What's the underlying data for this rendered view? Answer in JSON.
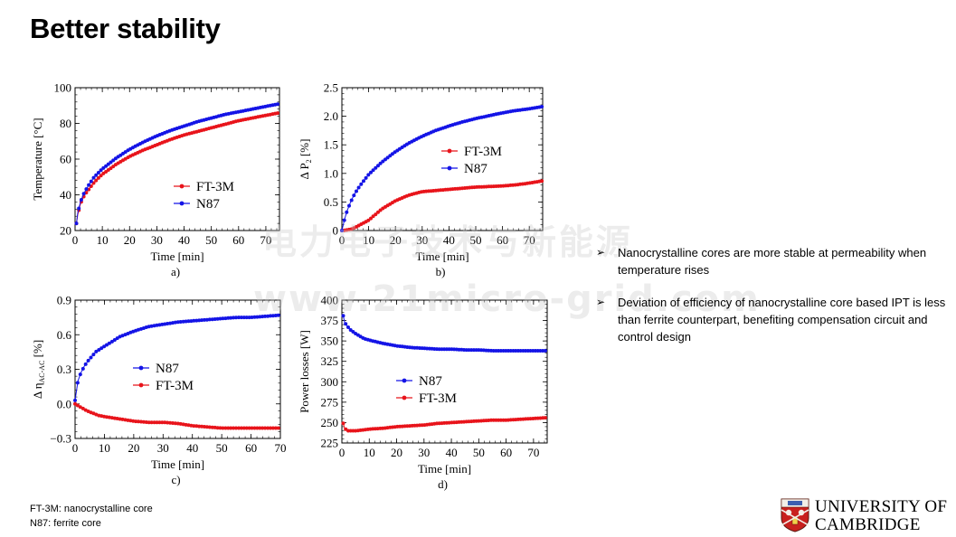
{
  "title": "Better stability",
  "chart_data": [
    {
      "id": "a",
      "type": "line",
      "caption": "a)",
      "xlabel": "Time [min]",
      "ylabel": "Temperature   [°C]",
      "xlim": [
        0,
        75
      ],
      "ylim": [
        20,
        100
      ],
      "xticks": [
        0,
        10,
        20,
        30,
        40,
        50,
        60,
        70
      ],
      "yticks": [
        20,
        40,
        60,
        80,
        100
      ],
      "legend_position": "lower-right",
      "series": [
        {
          "name": "FT-3M",
          "color": "#e8141b",
          "x": [
            0.5,
            1,
            2,
            3,
            4,
            5,
            7,
            10,
            15,
            20,
            25,
            30,
            35,
            40,
            45,
            50,
            55,
            60,
            65,
            70,
            75
          ],
          "y": [
            24,
            29,
            35,
            38.5,
            41,
            43,
            47,
            51.5,
            57,
            61.5,
            65,
            68,
            71,
            73.5,
            75.5,
            77.5,
            79.5,
            81.5,
            83,
            84.5,
            86
          ]
        },
        {
          "name": "N87",
          "color": "#1414e6",
          "x": [
            0.5,
            1,
            2,
            3,
            4,
            5,
            7,
            10,
            15,
            20,
            25,
            30,
            35,
            40,
            45,
            50,
            55,
            60,
            65,
            70,
            75
          ],
          "y": [
            24,
            30,
            36,
            40,
            43,
            45.5,
            50,
            54.5,
            60.5,
            65.5,
            69.5,
            73,
            76,
            78.5,
            81,
            83,
            85,
            86.5,
            88,
            89.5,
            91
          ]
        }
      ]
    },
    {
      "id": "b",
      "type": "line",
      "caption": "b)",
      "xlabel": "Time [min]",
      "ylabel": "Δ P",
      "ylabel_sub": "2",
      "ylabel_unit": " [%]",
      "xlim": [
        0,
        75
      ],
      "ylim": [
        0,
        2.5
      ],
      "xticks": [
        0,
        10,
        20,
        30,
        40,
        50,
        60,
        70
      ],
      "yticks": [
        0,
        0.5,
        1.0,
        1.5,
        2.0,
        2.5
      ],
      "ytick_labels": [
        "0",
        "0.5",
        "1.0",
        "1.5",
        "2.0",
        "2.5"
      ],
      "legend_position": "upper-center",
      "series": [
        {
          "name": "FT-3M",
          "color": "#e8141b",
          "x": [
            0,
            2,
            4,
            6,
            8,
            10,
            12,
            15,
            20,
            25,
            30,
            35,
            40,
            45,
            50,
            55,
            60,
            65,
            70,
            75
          ],
          "y": [
            0,
            0.01,
            0.03,
            0.08,
            0.13,
            0.18,
            0.26,
            0.38,
            0.52,
            0.62,
            0.68,
            0.7,
            0.72,
            0.74,
            0.76,
            0.77,
            0.78,
            0.8,
            0.83,
            0.87
          ]
        },
        {
          "name": "N87",
          "color": "#1414e6",
          "x": [
            0,
            1,
            2,
            3,
            4,
            5,
            7,
            10,
            15,
            20,
            25,
            30,
            35,
            40,
            45,
            50,
            55,
            60,
            65,
            70,
            75
          ],
          "y": [
            0,
            0.2,
            0.35,
            0.47,
            0.57,
            0.66,
            0.8,
            0.98,
            1.2,
            1.38,
            1.53,
            1.65,
            1.75,
            1.83,
            1.9,
            1.96,
            2.01,
            2.06,
            2.1,
            2.13,
            2.17
          ]
        }
      ]
    },
    {
      "id": "c",
      "type": "line",
      "caption": "c)",
      "xlabel": "Time [min]",
      "ylabel": "Δ η",
      "ylabel_sub": "AC-AC",
      "ylabel_unit": "  [%]",
      "xlim": [
        0,
        70
      ],
      "ylim": [
        -0.3,
        0.9
      ],
      "xticks": [
        0,
        10,
        20,
        30,
        40,
        50,
        60,
        70
      ],
      "yticks": [
        -0.3,
        0,
        0.3,
        0.6,
        0.9
      ],
      "ytick_labels": [
        "−0.3",
        "0.0",
        "0.3",
        "0.6",
        "0.9"
      ],
      "legend_position": "center",
      "series": [
        {
          "name": "N87",
          "color": "#1414e6",
          "x": [
            0,
            1,
            2,
            3,
            4,
            5,
            7,
            10,
            12,
            15,
            20,
            25,
            30,
            35,
            40,
            45,
            50,
            55,
            60,
            65,
            70
          ],
          "y": [
            0.03,
            0.2,
            0.27,
            0.32,
            0.36,
            0.39,
            0.45,
            0.5,
            0.53,
            0.58,
            0.63,
            0.67,
            0.69,
            0.71,
            0.72,
            0.73,
            0.74,
            0.75,
            0.75,
            0.76,
            0.77
          ]
        },
        {
          "name": "FT-3M",
          "color": "#e8141b",
          "x": [
            0,
            2,
            4,
            6,
            8,
            10,
            15,
            20,
            25,
            30,
            35,
            40,
            45,
            50,
            55,
            60,
            65,
            70
          ],
          "y": [
            0,
            -0.03,
            -0.06,
            -0.08,
            -0.1,
            -0.11,
            -0.13,
            -0.15,
            -0.16,
            -0.16,
            -0.17,
            -0.19,
            -0.2,
            -0.21,
            -0.21,
            -0.21,
            -0.21,
            -0.21
          ]
        }
      ]
    },
    {
      "id": "d",
      "type": "line",
      "caption": "d)",
      "xlabel": "Time [min]",
      "ylabel": "Power losses [W]",
      "xlim": [
        0,
        75
      ],
      "ylim": [
        225,
        400
      ],
      "xticks": [
        0,
        10,
        20,
        30,
        40,
        50,
        60,
        70
      ],
      "yticks": [
        225,
        250,
        275,
        300,
        325,
        350,
        375,
        400
      ],
      "legend_position": "center",
      "series": [
        {
          "name": "N87",
          "color": "#1414e6",
          "x": [
            0.5,
            1,
            2,
            3,
            5,
            8,
            10,
            15,
            20,
            25,
            30,
            35,
            40,
            45,
            50,
            55,
            60,
            65,
            70,
            75
          ],
          "y": [
            381,
            373,
            368,
            364,
            359,
            353,
            351,
            347,
            344,
            342,
            341,
            340,
            340,
            339,
            339,
            338,
            338,
            338,
            338,
            338
          ]
        },
        {
          "name": "FT-3M",
          "color": "#e8141b",
          "x": [
            0.5,
            1,
            2,
            3,
            5,
            8,
            10,
            15,
            20,
            25,
            30,
            35,
            40,
            45,
            50,
            55,
            60,
            65,
            70,
            75
          ],
          "y": [
            249,
            243,
            240,
            240,
            240,
            241,
            242,
            243,
            245,
            246,
            247,
            249,
            250,
            251,
            252,
            253,
            253,
            254,
            255,
            256
          ]
        }
      ]
    }
  ],
  "bullets": [
    "Nanocrystalline cores are more stable at permeability when temperature rises",
    "Deviation of efficiency of nanocrystalline core based IPT is less than ferrite counterpart, benefiting compensation circuit and control design"
  ],
  "bullet_marker": "➢",
  "footnotes": {
    "ft3m": "FT-3M: nanocrystalline core",
    "n87": "N87: ferrite core"
  },
  "watermark": {
    "line1": "电力电子技术与新能源",
    "line2": "www.21micro-grid.com"
  },
  "logo": {
    "line1": "UNIVERSITY OF",
    "line2": "CAMBRIDGE"
  }
}
